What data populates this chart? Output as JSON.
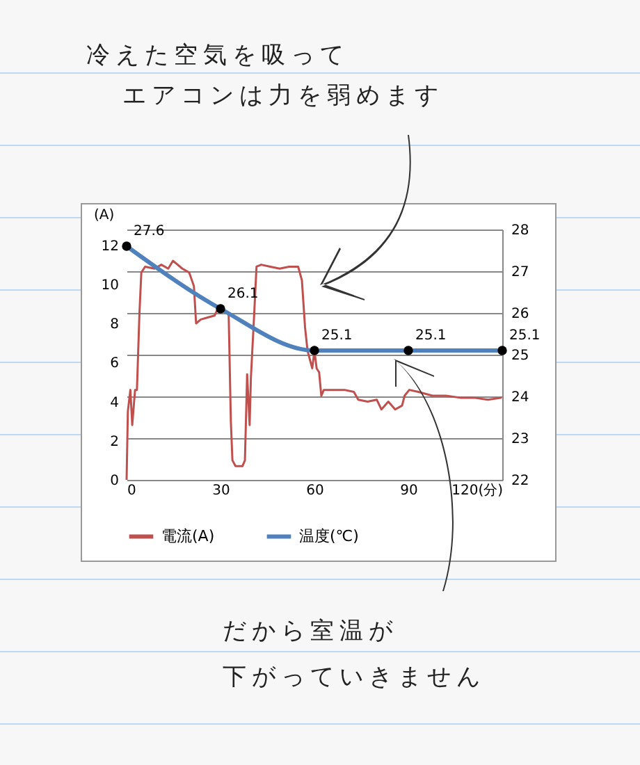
{
  "chart_data": {
    "type": "line",
    "annotations": [
      "冷えた空気を吸って",
      "エアコンは力を弱めます",
      "だから室温が",
      "下がっていきません"
    ],
    "ylabel": "(A)",
    "xlim": [
      0,
      120
    ],
    "xticks": [
      0,
      30,
      60,
      90,
      {
        "value": 120,
        "label": "120(分)"
      }
    ],
    "ylim": [
      0,
      12.8
    ],
    "yticks": [
      0,
      2,
      4,
      6,
      8,
      10,
      12
    ],
    "y2lim": [
      22,
      28
    ],
    "y2ticks": [
      22,
      23,
      24,
      25,
      26,
      27,
      28
    ],
    "grid": true,
    "legend": "bottom",
    "series": [
      {
        "name": "電流(A)",
        "color": "#c0504d",
        "axis": "y",
        "x": [
          0,
          0.4,
          1.2,
          1.8,
          2.7,
          3.3,
          4.1,
          4.7,
          5.9,
          8.9,
          11.1,
          13.3,
          14.8,
          17.8,
          20,
          21.5,
          22.2,
          23.7,
          25.9,
          28.1,
          29.6,
          31.1,
          32.6,
          33.3,
          33.8,
          34.8,
          37,
          37.8,
          38.5,
          39.3,
          39.7,
          40.7,
          41.5,
          43,
          45.9,
          48.9,
          51.9,
          54.8,
          56,
          57,
          57.8,
          59.3,
          60,
          60.7,
          61.5,
          62.2,
          63,
          66.6,
          69.6,
          72.6,
          74,
          77,
          79.9,
          81.4,
          83.6,
          85.8,
          88,
          88.8,
          90.3,
          93.2,
          97.7,
          102,
          106.6,
          111,
          115.4,
          119.8
        ],
        "values": [
          0,
          3.5,
          4.6,
          2.8,
          4.6,
          4.6,
          8.5,
          10.6,
          10.9,
          10.8,
          11.0,
          10.8,
          11.2,
          10.8,
          10.6,
          9.9,
          8.0,
          8.2,
          8.3,
          8.4,
          8.9,
          8.6,
          8.5,
          3.0,
          1.0,
          0.7,
          0.7,
          1.0,
          5.4,
          2.8,
          5.2,
          8.3,
          10.9,
          11.0,
          10.9,
          10.8,
          10.9,
          10.9,
          10.2,
          7.8,
          6.6,
          5.7,
          6.6,
          5.7,
          5.5,
          4.3,
          4.6,
          4.6,
          4.6,
          4.5,
          4.1,
          4.0,
          4.1,
          3.6,
          4.0,
          3.6,
          3.8,
          4.3,
          4.6,
          4.5,
          4.3,
          4.3,
          4.2,
          4.2,
          4.1,
          4.2
        ]
      },
      {
        "name": "温度(℃)",
        "color": "#4f81bd",
        "axis": "y2",
        "marker": "circle",
        "x": [
          0,
          30,
          60,
          90,
          120
        ],
        "values": [
          27.6,
          26.1,
          25.1,
          25.1,
          25.1
        ],
        "value_labels": [
          "27.6",
          "26.1",
          "25.1",
          "25.1",
          "25.1"
        ]
      }
    ]
  }
}
